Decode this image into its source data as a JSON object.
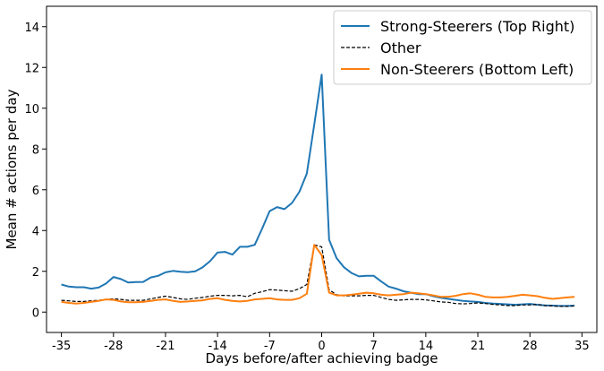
{
  "chart_data": {
    "type": "line",
    "title": "",
    "xlabel": "Days before/after achieving badge",
    "ylabel": "Mean # actions per day",
    "xlim": [
      -37,
      37
    ],
    "ylim": [
      -1,
      15
    ],
    "xticks": [
      -35,
      -28,
      -21,
      -14,
      -7,
      0,
      7,
      14,
      21,
      28,
      35
    ],
    "yticks": [
      0,
      2,
      4,
      6,
      8,
      10,
      12,
      14
    ],
    "grid": false,
    "legend_position": "top-right",
    "series": [
      {
        "name": "Strong-Steerers (Top Right)",
        "color": "#1f77b4",
        "style": "solid",
        "x": [
          -35,
          -34,
          -33,
          -32,
          -31,
          -30,
          -29,
          -28,
          -27,
          -26,
          -25,
          -24,
          -23,
          -22,
          -21,
          -20,
          -19,
          -18,
          -17,
          -16,
          -15,
          -14,
          -13,
          -12,
          -11,
          -10,
          -9,
          -8,
          -7,
          -6,
          -5,
          -4,
          -3,
          -2,
          -1,
          0,
          1,
          2,
          3,
          4,
          5,
          6,
          7,
          8,
          9,
          10,
          11,
          12,
          13,
          14,
          15,
          16,
          17,
          18,
          19,
          20,
          21,
          22,
          23,
          24,
          25,
          26,
          27,
          28,
          29,
          30,
          31,
          32,
          33,
          34
        ],
        "values": [
          1.35,
          1.25,
          1.22,
          1.22,
          1.15,
          1.2,
          1.4,
          1.72,
          1.62,
          1.45,
          1.47,
          1.48,
          1.7,
          1.78,
          1.95,
          2.02,
          1.98,
          1.96,
          2.0,
          2.2,
          2.5,
          2.92,
          2.95,
          2.82,
          3.2,
          3.2,
          3.3,
          4.1,
          4.95,
          5.15,
          5.05,
          5.35,
          5.9,
          6.8,
          9.2,
          11.65,
          3.55,
          2.65,
          2.2,
          1.92,
          1.75,
          1.78,
          1.78,
          1.5,
          1.25,
          1.15,
          1.02,
          0.95,
          0.88,
          0.88,
          0.78,
          0.7,
          0.65,
          0.6,
          0.55,
          0.52,
          0.5,
          0.45,
          0.42,
          0.4,
          0.38,
          0.36,
          0.38,
          0.4,
          0.36,
          0.33,
          0.32,
          0.3,
          0.3,
          0.32
        ]
      },
      {
        "name": "Other",
        "color": "#000000",
        "style": "dashed",
        "x": [
          -35,
          -34,
          -33,
          -32,
          -31,
          -30,
          -29,
          -28,
          -27,
          -26,
          -25,
          -24,
          -23,
          -22,
          -21,
          -20,
          -19,
          -18,
          -17,
          -16,
          -15,
          -14,
          -13,
          -12,
          -11,
          -10,
          -9,
          -8,
          -7,
          -6,
          -5,
          -4,
          -3,
          -2,
          -1,
          0,
          1,
          2,
          3,
          4,
          5,
          6,
          7,
          8,
          9,
          10,
          11,
          12,
          13,
          14,
          15,
          16,
          17,
          18,
          19,
          20,
          21,
          22,
          23,
          24,
          25,
          26,
          27,
          28,
          29,
          30,
          31,
          32,
          33,
          34
        ],
        "values": [
          0.58,
          0.55,
          0.52,
          0.52,
          0.55,
          0.58,
          0.62,
          0.65,
          0.62,
          0.58,
          0.58,
          0.58,
          0.65,
          0.72,
          0.78,
          0.72,
          0.65,
          0.62,
          0.68,
          0.72,
          0.78,
          0.82,
          0.82,
          0.8,
          0.82,
          0.75,
          0.92,
          1.0,
          1.1,
          1.08,
          1.05,
          1.02,
          1.15,
          1.35,
          3.3,
          3.2,
          1.1,
          0.85,
          0.8,
          0.8,
          0.8,
          0.82,
          0.82,
          0.72,
          0.62,
          0.58,
          0.6,
          0.62,
          0.62,
          0.6,
          0.55,
          0.5,
          0.48,
          0.42,
          0.4,
          0.42,
          0.45,
          0.42,
          0.38,
          0.35,
          0.32,
          0.32,
          0.35,
          0.35,
          0.38,
          0.32,
          0.3,
          0.28,
          0.28,
          0.3
        ]
      },
      {
        "name": "Non-Steerers (Bottom Left)",
        "color": "#ff7f0e",
        "style": "solid",
        "x": [
          -35,
          -34,
          -33,
          -32,
          -31,
          -30,
          -29,
          -28,
          -27,
          -26,
          -25,
          -24,
          -23,
          -22,
          -21,
          -20,
          -19,
          -18,
          -17,
          -16,
          -15,
          -14,
          -13,
          -12,
          -11,
          -10,
          -9,
          -8,
          -7,
          -6,
          -5,
          -4,
          -3,
          -2,
          -1,
          0,
          1,
          2,
          3,
          4,
          5,
          6,
          7,
          8,
          9,
          10,
          11,
          12,
          13,
          14,
          15,
          16,
          17,
          18,
          19,
          20,
          21,
          22,
          23,
          24,
          25,
          26,
          27,
          28,
          29,
          30,
          31,
          32,
          33,
          34
        ],
        "values": [
          0.5,
          0.45,
          0.42,
          0.45,
          0.5,
          0.55,
          0.62,
          0.6,
          0.52,
          0.48,
          0.48,
          0.5,
          0.55,
          0.6,
          0.62,
          0.55,
          0.5,
          0.52,
          0.55,
          0.58,
          0.65,
          0.68,
          0.6,
          0.55,
          0.52,
          0.55,
          0.62,
          0.65,
          0.68,
          0.62,
          0.6,
          0.6,
          0.68,
          0.9,
          3.3,
          2.8,
          0.95,
          0.82,
          0.82,
          0.85,
          0.9,
          0.95,
          0.92,
          0.85,
          0.82,
          0.85,
          0.88,
          0.95,
          0.92,
          0.88,
          0.82,
          0.75,
          0.75,
          0.8,
          0.88,
          0.92,
          0.85,
          0.75,
          0.72,
          0.72,
          0.75,
          0.8,
          0.85,
          0.82,
          0.78,
          0.7,
          0.65,
          0.68,
          0.72,
          0.75
        ]
      }
    ]
  }
}
